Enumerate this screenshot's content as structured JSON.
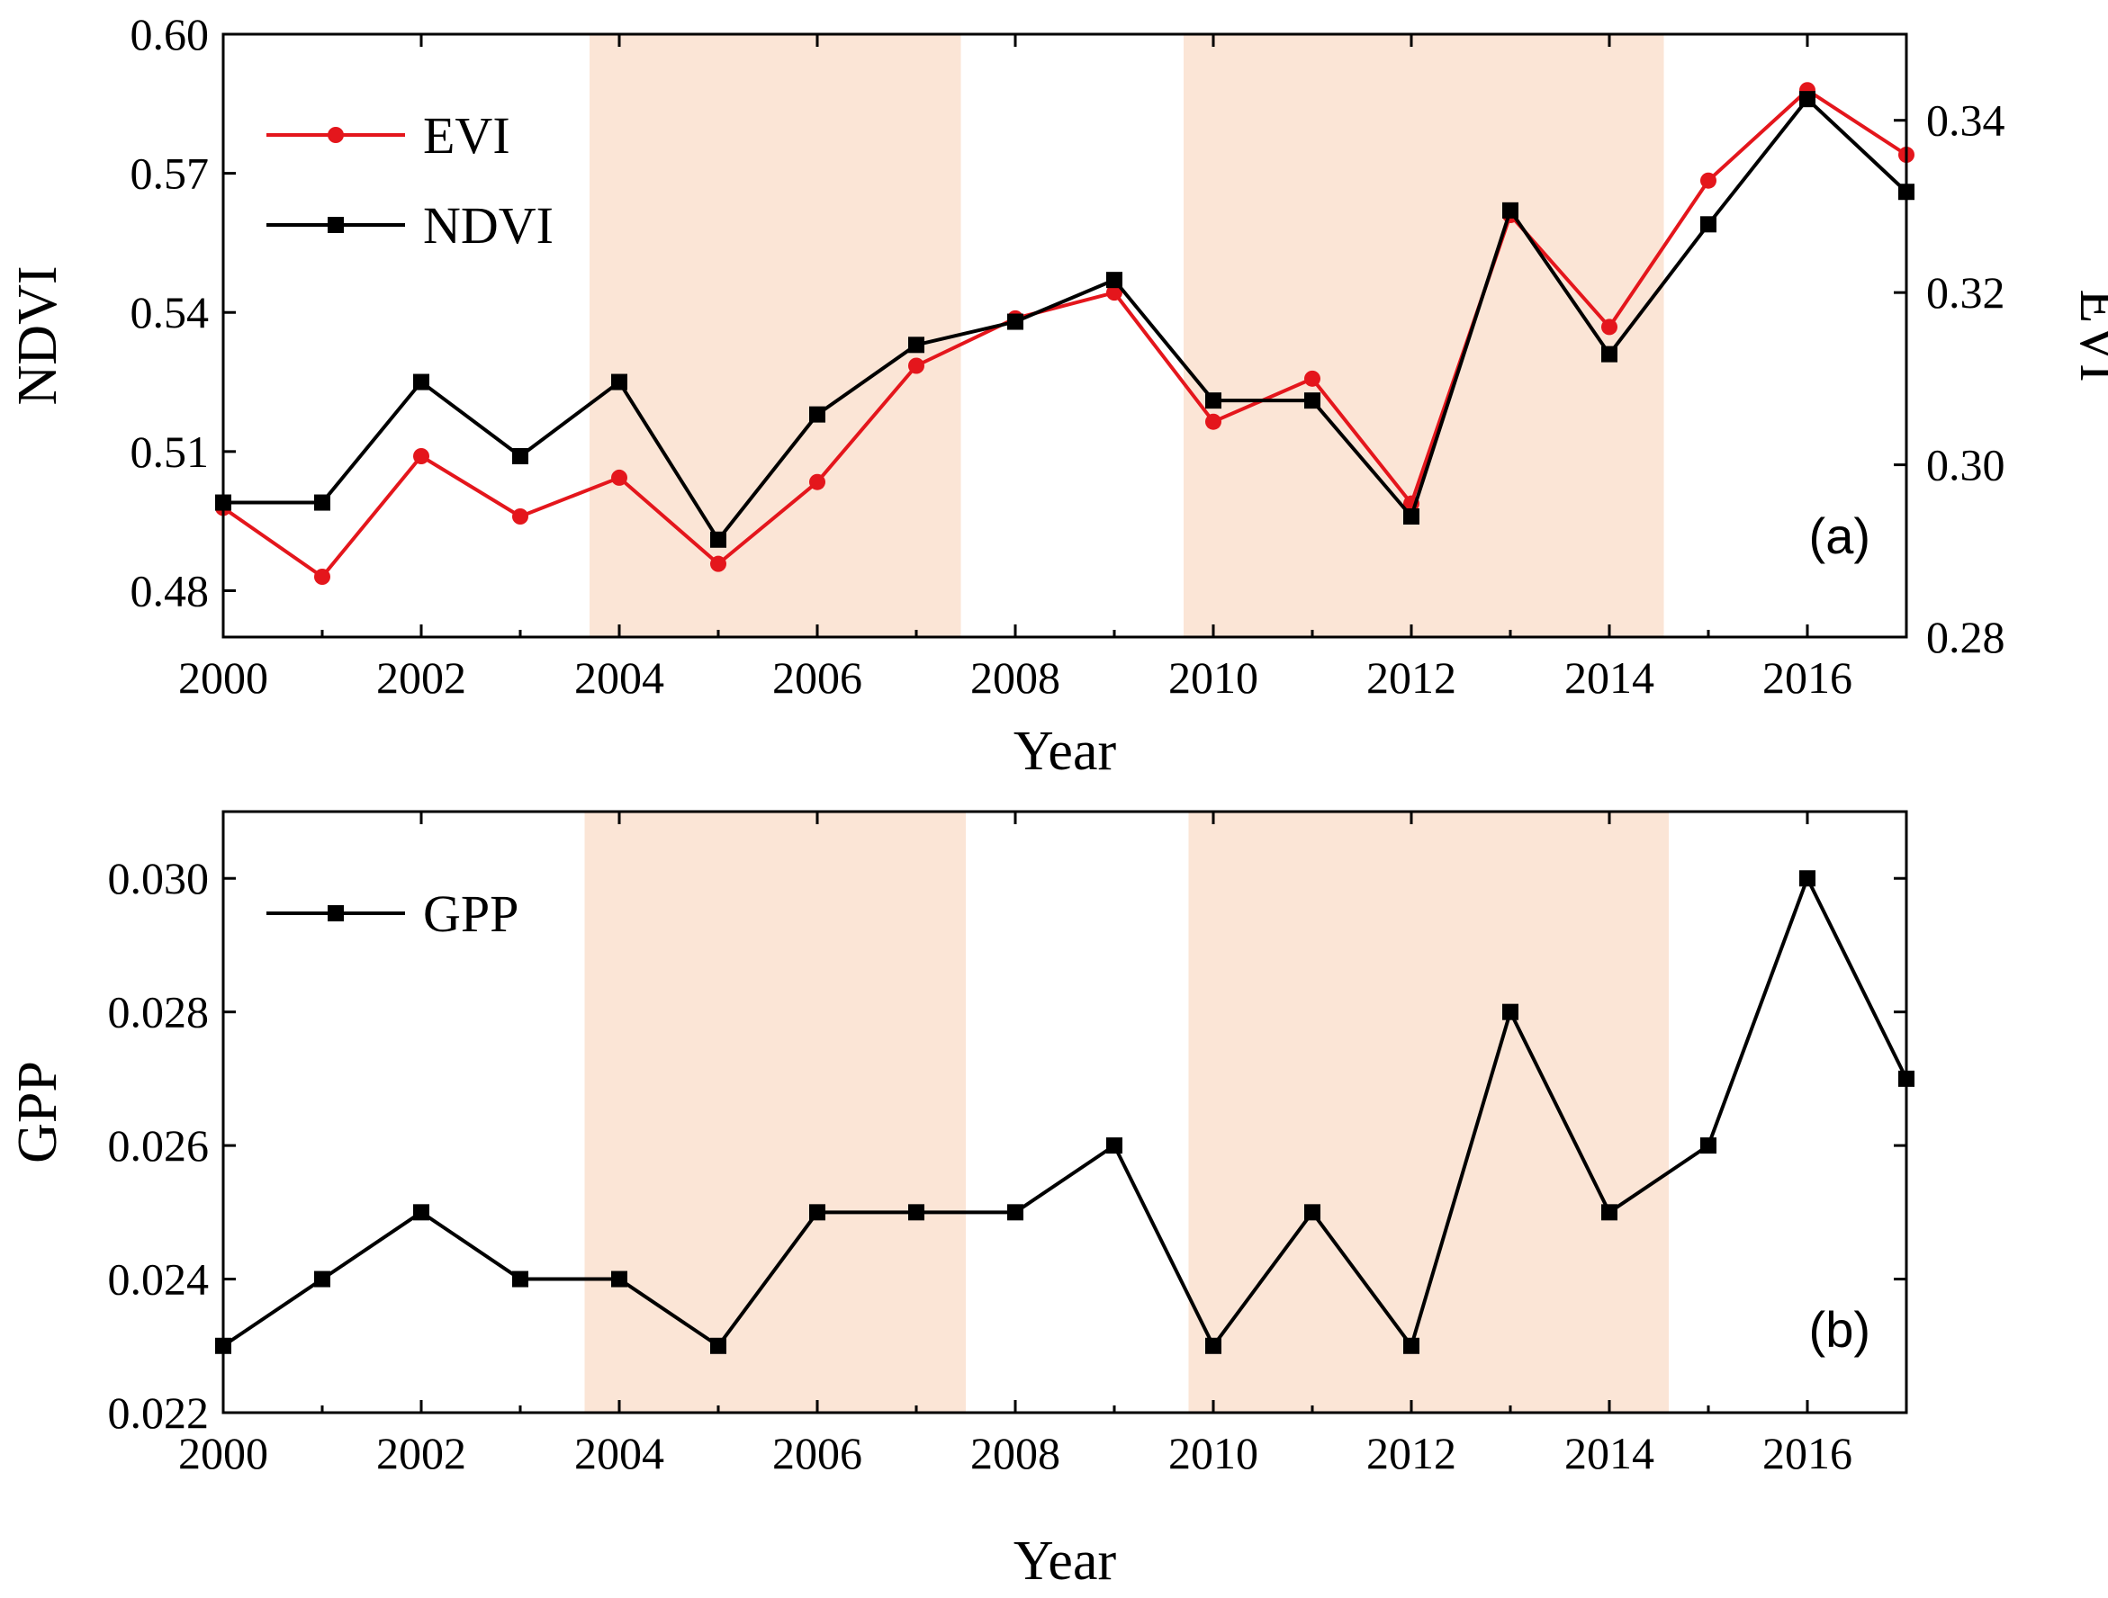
{
  "chart_data": [
    {
      "type": "line",
      "panel": "(a)",
      "title": "",
      "xlabel": "Year",
      "ylabel": "NDVI",
      "y2label": "EVI",
      "xlim": [
        2000,
        2017
      ],
      "ylim": [
        0.47,
        0.6
      ],
      "y2lim": [
        0.28,
        0.35
      ],
      "xticks": [
        "2000",
        "2002",
        "2004",
        "2006",
        "2008",
        "2010",
        "2012",
        "2014",
        "2016"
      ],
      "yticks": [
        "0.48",
        "0.51",
        "0.54",
        "0.57",
        "0.60"
      ],
      "y2ticks": [
        "0.28",
        "0.30",
        "0.32",
        "0.34"
      ],
      "shaded_periods": [
        [
          2003.7,
          2007.45
        ],
        [
          2009.7,
          2014.55
        ]
      ],
      "grid": false,
      "legend_position": "top-left",
      "x": [
        2000,
        2001,
        2002,
        2003,
        2004,
        2005,
        2006,
        2007,
        2008,
        2009,
        2010,
        2011,
        2012,
        2013,
        2014,
        2015,
        2016,
        2017
      ],
      "series": [
        {
          "name": "EVI",
          "axis": "right",
          "color": "#e4161c",
          "marker": "circle",
          "values": [
            0.295,
            0.287,
            0.301,
            0.294,
            0.2985,
            0.2885,
            0.298,
            0.3115,
            0.317,
            0.32,
            0.305,
            0.31,
            0.2955,
            0.329,
            0.316,
            0.333,
            0.3435,
            0.336
          ]
        },
        {
          "name": "NDVI",
          "axis": "left",
          "color": "#000000",
          "marker": "square",
          "values": [
            0.499,
            0.499,
            0.525,
            0.509,
            0.525,
            0.491,
            0.518,
            0.533,
            0.538,
            0.547,
            0.521,
            0.521,
            0.496,
            0.562,
            0.531,
            0.559,
            0.586,
            0.566
          ]
        }
      ]
    },
    {
      "type": "line",
      "panel": "(b)",
      "title": "",
      "xlabel": "Year",
      "ylabel": "GPP",
      "xlim": [
        2000,
        2017
      ],
      "ylim": [
        0.022,
        0.031
      ],
      "xticks": [
        "2000",
        "2002",
        "2004",
        "2006",
        "2008",
        "2010",
        "2012",
        "2014",
        "2016"
      ],
      "yticks": [
        "0.022",
        "0.024",
        "0.026",
        "0.028",
        "0.030"
      ],
      "shaded_periods": [
        [
          2003.65,
          2007.5
        ],
        [
          2009.75,
          2014.6
        ]
      ],
      "grid": false,
      "legend_position": "top-left",
      "x": [
        2000,
        2001,
        2002,
        2003,
        2004,
        2005,
        2006,
        2007,
        2008,
        2009,
        2010,
        2011,
        2012,
        2013,
        2014,
        2015,
        2016,
        2017
      ],
      "series": [
        {
          "name": "GPP",
          "axis": "left",
          "color": "#000000",
          "marker": "square",
          "values": [
            0.023,
            0.024,
            0.025,
            0.024,
            0.024,
            0.023,
            0.025,
            0.025,
            0.025,
            0.026,
            0.023,
            0.025,
            0.023,
            0.028,
            0.025,
            0.026,
            0.03,
            0.027
          ]
        }
      ]
    }
  ],
  "colors": {
    "shade": "#fbe5d6",
    "axis": "#000000"
  }
}
